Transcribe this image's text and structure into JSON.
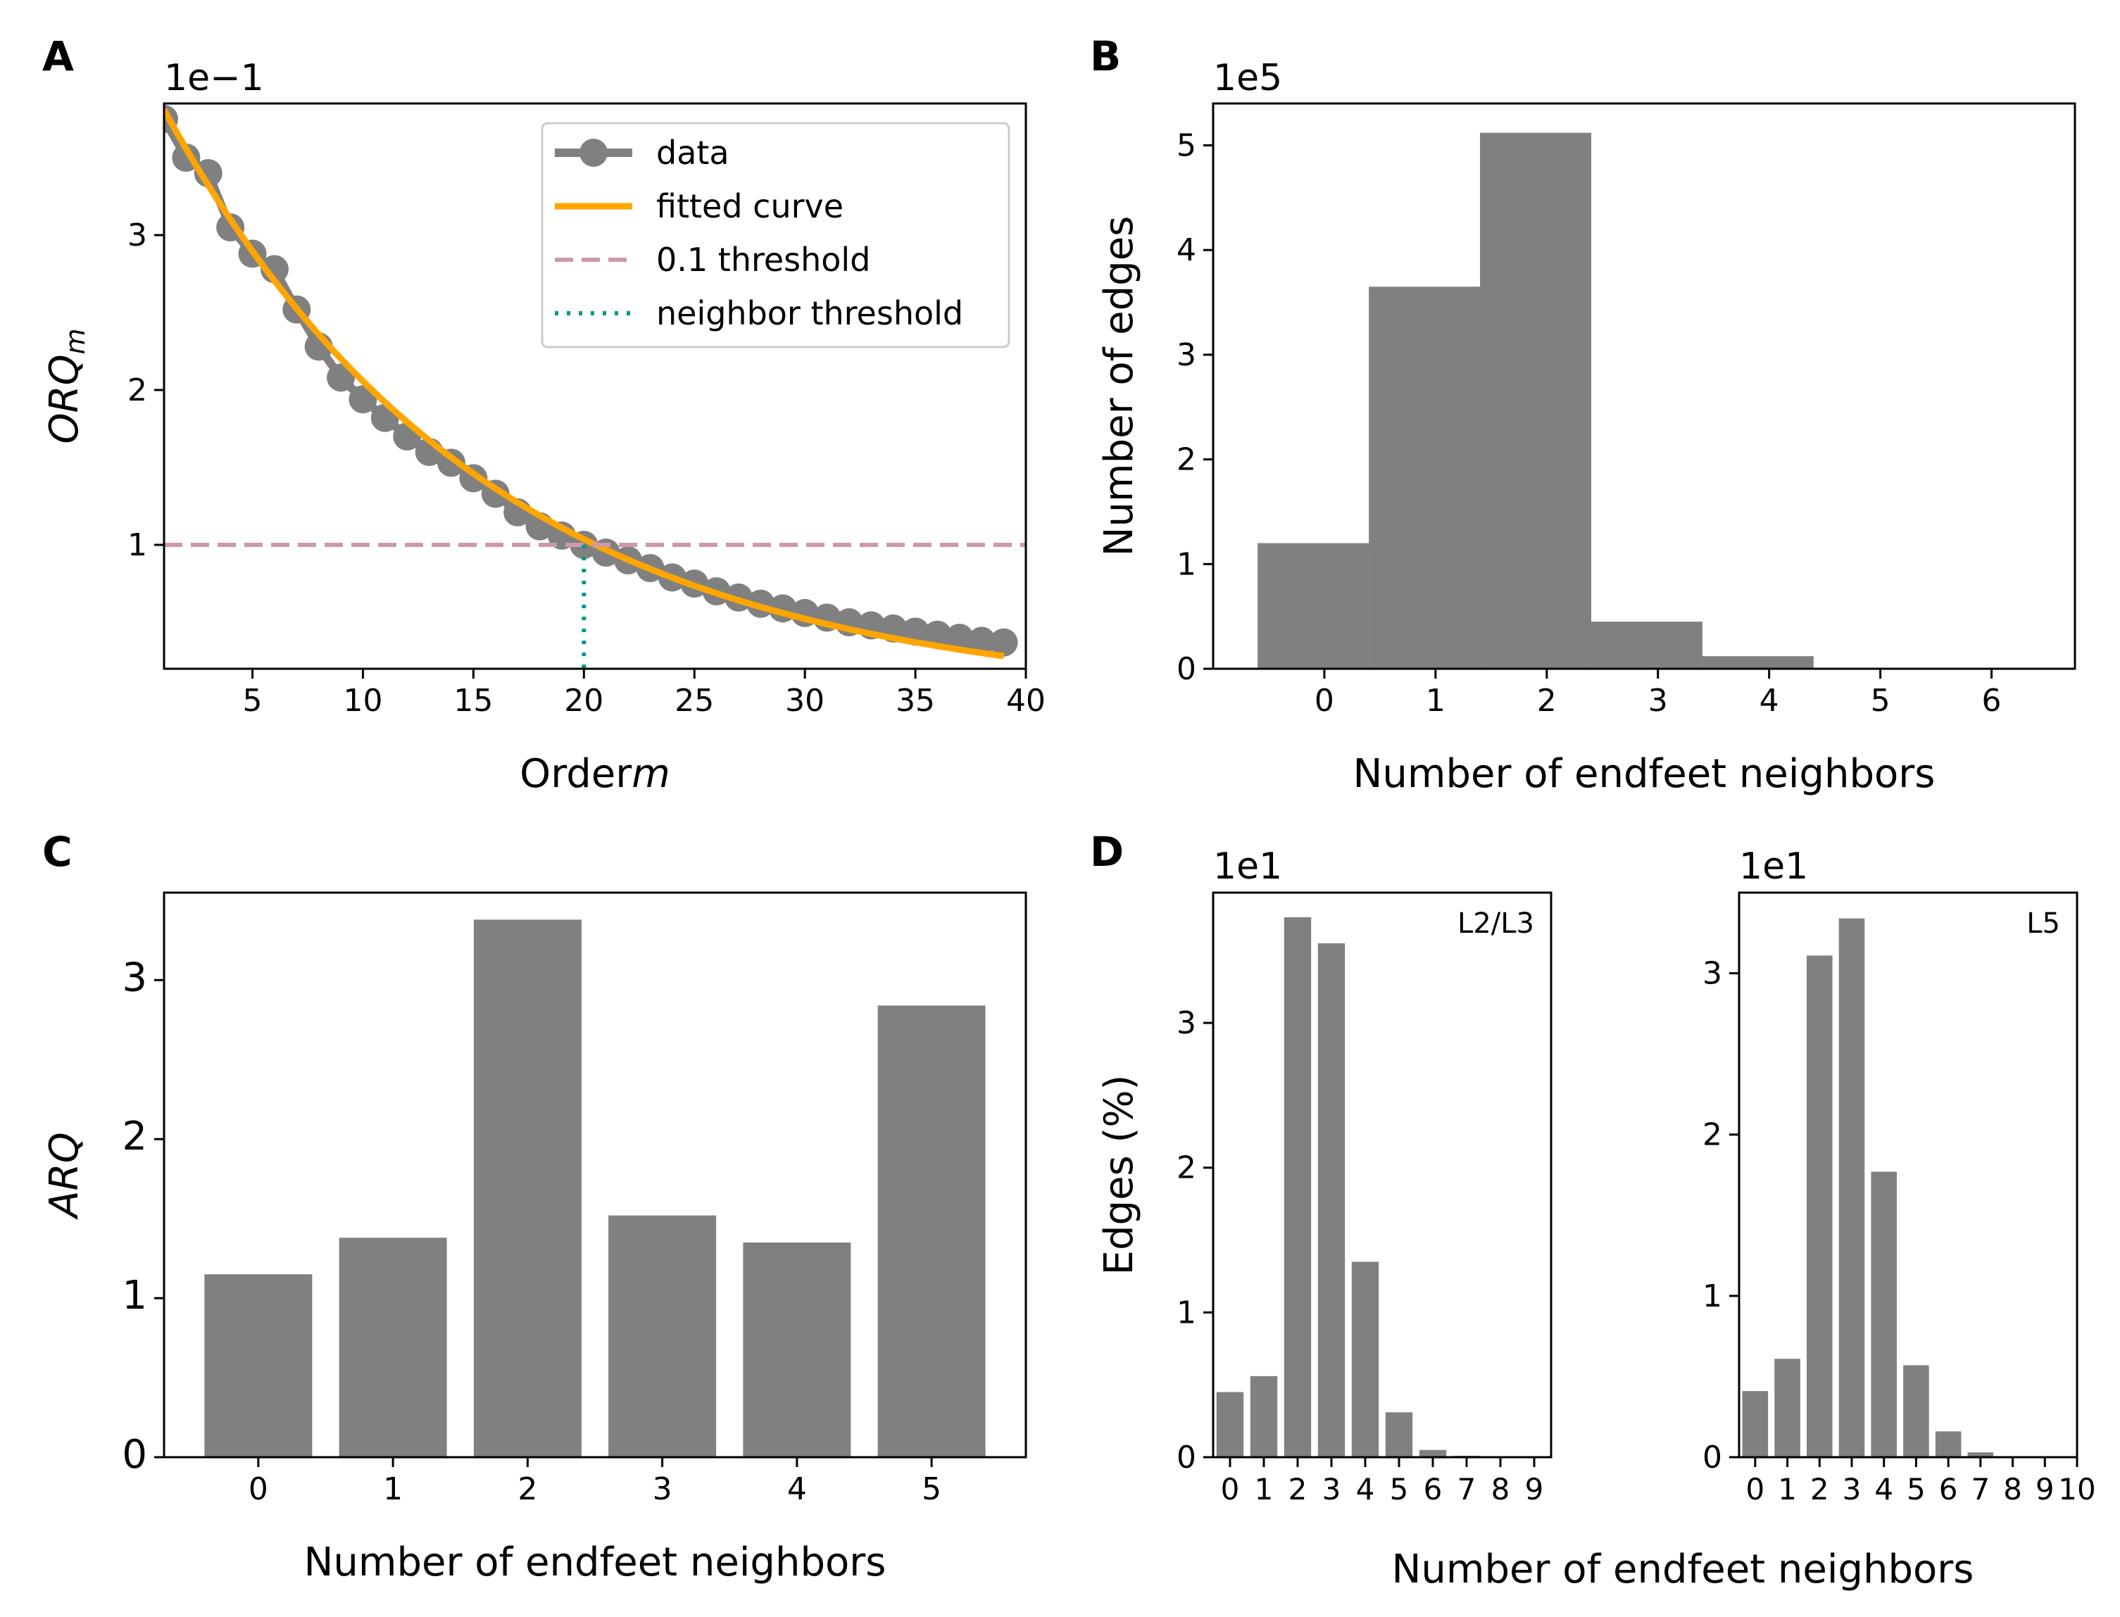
{
  "colors": {
    "data": "#808080",
    "fit": "#FFA500",
    "threshold": "#CC99AA",
    "neighbor": "#009988",
    "bar": "#808080"
  },
  "chart_data": [
    {
      "panel": "A",
      "type": "line",
      "offset_text": "1e−1",
      "xlabel": "Order",
      "xlabel_var": "m",
      "ylabel": "ORQ",
      "ylabel_sub": "m",
      "xlim": [
        1,
        40
      ],
      "ylim": [
        0.02,
        0.385
      ],
      "xticks": [
        5,
        10,
        15,
        20,
        25,
        30,
        35,
        40
      ],
      "yticks": [
        {
          "v": 0.1,
          "label": "1"
        },
        {
          "v": 0.2,
          "label": "2"
        },
        {
          "v": 0.3,
          "label": "3"
        }
      ],
      "x": [
        1,
        2,
        3,
        4,
        5,
        6,
        7,
        8,
        9,
        10,
        11,
        12,
        13,
        14,
        15,
        16,
        17,
        18,
        19,
        20,
        21,
        22,
        23,
        24,
        25,
        26,
        27,
        28,
        29,
        30,
        31,
        32,
        33,
        34,
        35,
        36,
        37,
        38,
        39
      ],
      "data": [
        0.375,
        0.35,
        0.34,
        0.305,
        0.288,
        0.278,
        0.252,
        0.228,
        0.208,
        0.194,
        0.182,
        0.17,
        0.16,
        0.153,
        0.143,
        0.133,
        0.121,
        0.112,
        0.106,
        0.1,
        0.095,
        0.09,
        0.085,
        0.079,
        0.075,
        0.07,
        0.066,
        0.062,
        0.059,
        0.056,
        0.053,
        0.05,
        0.048,
        0.046,
        0.044,
        0.042,
        0.04,
        0.038,
        0.037
      ],
      "fit": {
        "a": 0.408,
        "b": 0.0685,
        "c": 0.0
      },
      "threshold": 0.1,
      "neighbor_threshold_x": 20,
      "legend": [
        "data",
        "fitted curve",
        "0.1 threshold",
        "neighbor threshold"
      ]
    },
    {
      "panel": "B",
      "type": "bar",
      "offset_text": "1e5",
      "xlabel": "Number of endfeet neighbors",
      "ylabel": "Number of edges",
      "categories": [
        0,
        1,
        2,
        3,
        4,
        5,
        6
      ],
      "values": [
        1.2,
        3.65,
        5.12,
        0.45,
        0.12,
        0.005,
        0.002
      ],
      "xlim": [
        -1.0,
        6.75
      ],
      "ylim": [
        0,
        5.4
      ],
      "xticks": [
        0,
        1,
        2,
        3,
        4,
        5,
        6
      ],
      "yticks": [
        0,
        1,
        2,
        3,
        4,
        5
      ]
    },
    {
      "panel": "C",
      "type": "bar",
      "xlabel": "Number of endfeet neighbors",
      "ylabel": "ARQ",
      "categories": [
        0,
        1,
        2,
        3,
        4,
        5
      ],
      "values": [
        1.15,
        1.38,
        3.38,
        1.52,
        1.35,
        2.84
      ],
      "xlim": [
        -0.7,
        5.7
      ],
      "ylim": [
        0,
        3.55
      ],
      "xticks": [
        0,
        1,
        2,
        3,
        4,
        5
      ],
      "yticks": [
        0,
        1,
        2,
        3
      ]
    },
    {
      "panel": "D",
      "type": "bar",
      "subtitle": "L2/L3",
      "offset_text": "1e1",
      "ylabel": "Edges (%)",
      "categories": [
        0,
        1,
        2,
        3,
        4,
        5,
        6,
        7,
        8,
        9
      ],
      "values": [
        0.45,
        0.56,
        3.73,
        3.55,
        1.35,
        0.31,
        0.05,
        0.01,
        0.0,
        0.0
      ],
      "xlim": [
        -0.5,
        9.5
      ],
      "ylim": [
        0,
        3.9
      ],
      "xticks": [
        0,
        1,
        2,
        3,
        4,
        5,
        6,
        7,
        8,
        9
      ],
      "yticks": [
        0,
        1,
        2,
        3
      ]
    },
    {
      "panel": "D2",
      "type": "bar",
      "subtitle": "L5",
      "offset_text": "1e1",
      "xlabel": "Number of endfeet neighbors",
      "categories": [
        0,
        1,
        2,
        3,
        4,
        5,
        6,
        7,
        8,
        9,
        10
      ],
      "values": [
        0.41,
        0.61,
        3.11,
        3.34,
        1.77,
        0.57,
        0.16,
        0.03,
        0.0,
        0.0,
        0.0
      ],
      "xlim": [
        -0.5,
        10.0
      ],
      "ylim": [
        0,
        3.5
      ],
      "xticks": [
        0,
        1,
        2,
        3,
        4,
        5,
        6,
        7,
        8,
        9,
        10
      ],
      "yticks": [
        0,
        1,
        2,
        3
      ]
    }
  ]
}
